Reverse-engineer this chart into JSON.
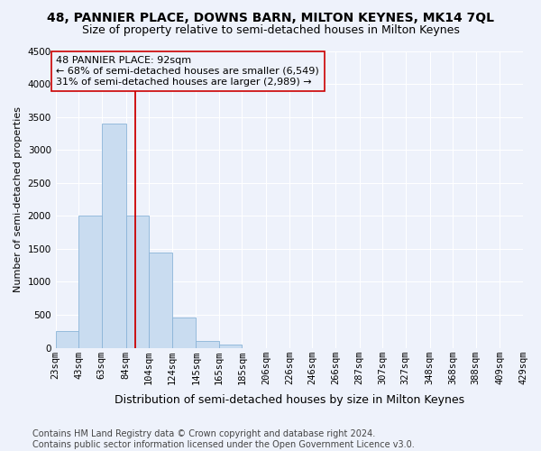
{
  "title": "48, PANNIER PLACE, DOWNS BARN, MILTON KEYNES, MK14 7QL",
  "subtitle": "Size of property relative to semi-detached houses in Milton Keynes",
  "xlabel": "Distribution of semi-detached houses by size in Milton Keynes",
  "ylabel": "Number of semi-detached properties",
  "bar_color": "#c9dcf0",
  "bar_edge_color": "#8ab4d8",
  "property_line_color": "#cc0000",
  "property_sqm": 92,
  "pct_smaller": 68,
  "count_smaller": 6549,
  "pct_larger": 31,
  "count_larger": 2989,
  "bin_edges": [
    23,
    43,
    63,
    84,
    104,
    124,
    145,
    165,
    185,
    206,
    226,
    246,
    266,
    287,
    307,
    327,
    348,
    368,
    388,
    409,
    429
  ],
  "bin_labels": [
    "23sqm",
    "43sqm",
    "63sqm",
    "84sqm",
    "104sqm",
    "124sqm",
    "145sqm",
    "165sqm",
    "185sqm",
    "206sqm",
    "226sqm",
    "246sqm",
    "266sqm",
    "287sqm",
    "307sqm",
    "327sqm",
    "348sqm",
    "368sqm",
    "388sqm",
    "409sqm",
    "429sqm"
  ],
  "counts": [
    250,
    2000,
    3400,
    2000,
    1450,
    460,
    100,
    55,
    0,
    0,
    0,
    0,
    0,
    0,
    0,
    0,
    0,
    0,
    0,
    0
  ],
  "ylim": [
    0,
    4500
  ],
  "yticks": [
    0,
    500,
    1000,
    1500,
    2000,
    2500,
    3000,
    3500,
    4000,
    4500
  ],
  "footnote": "Contains HM Land Registry data © Crown copyright and database right 2024.\nContains public sector information licensed under the Open Government Licence v3.0.",
  "background_color": "#eef2fb",
  "grid_color": "#ffffff",
  "title_fontsize": 10,
  "subtitle_fontsize": 9,
  "ylabel_fontsize": 8,
  "xlabel_fontsize": 9,
  "tick_fontsize": 7.5,
  "annot_fontsize": 8,
  "footnote_fontsize": 7
}
